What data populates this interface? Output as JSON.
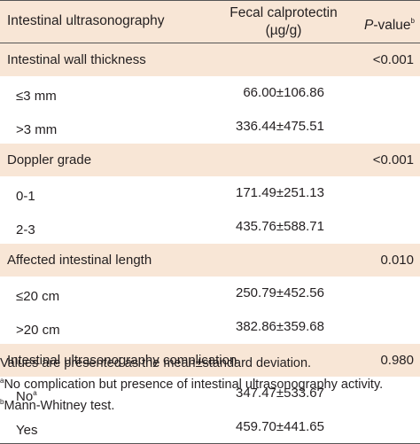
{
  "header": {
    "col1": "Intestinal ultrasonography",
    "col2_line1": "Fecal calprotectin",
    "col2_line2": "(µg/g)",
    "col3": "P",
    "col3_suffix": "-value",
    "col3_sup": "b"
  },
  "groups": [
    {
      "label": "Intestinal wall thickness",
      "p_value": "<0.001",
      "rows": [
        {
          "label": "≤3 mm",
          "sup": "",
          "value": "66.00±106.86"
        },
        {
          "label": ">3 mm",
          "sup": "",
          "value": "336.44±475.51"
        }
      ]
    },
    {
      "label": "Doppler grade",
      "p_value": "<0.001",
      "rows": [
        {
          "label": "0-1",
          "sup": "",
          "value": "171.49±251.13"
        },
        {
          "label": "2-3",
          "sup": "",
          "value": "435.76±588.71"
        }
      ]
    },
    {
      "label": "Affected intestinal length",
      "p_value": "0.010",
      "rows": [
        {
          "label": "≤20 cm",
          "sup": "",
          "value": "250.79±452.56"
        },
        {
          "label": ">20 cm",
          "sup": "",
          "value": "382.86±359.68"
        }
      ]
    },
    {
      "label": "Intestinal ultrasonography complication",
      "p_value": "0.980",
      "rows": [
        {
          "label": "No",
          "sup": "a",
          "value": "347.47±533.67"
        },
        {
          "label": "Yes",
          "sup": "",
          "value": "459.70±441.65"
        }
      ]
    }
  ],
  "footnotes": [
    {
      "sup": "",
      "text": "Values are presented as the mean±standard deviation."
    },
    {
      "sup": "a",
      "text": "No complication but presence of intestinal ultrasonography activity."
    },
    {
      "sup": "b",
      "text": "Mann-Whitney test."
    }
  ],
  "colors": {
    "row_shade": "#f8e6d6",
    "text": "#231f20",
    "rule": "#555555"
  }
}
